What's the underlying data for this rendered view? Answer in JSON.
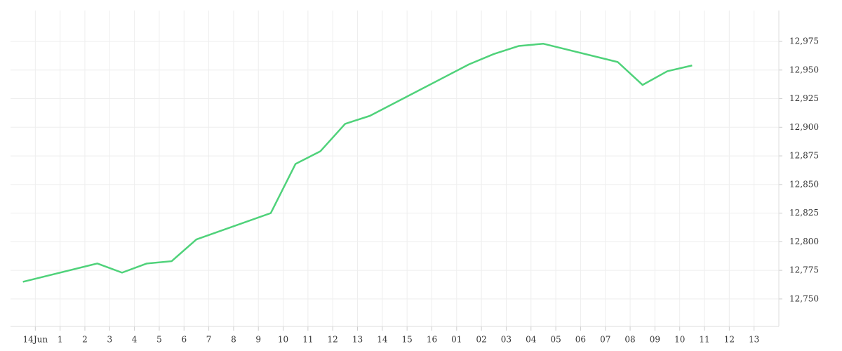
{
  "chart_data": {
    "type": "line",
    "x": [
      -0.5,
      2.5,
      3.5,
      4.5,
      5.5,
      6.5,
      9.5,
      10.5,
      11.5,
      12.5,
      13.5,
      17.5,
      18.5,
      19.5,
      20.5,
      23.5,
      24.5,
      25.5,
      26.5
    ],
    "series": [
      {
        "color": "#4fd27a",
        "values": [
          12765,
          12781,
          12773,
          12781,
          12783,
          12802,
          12825,
          12868,
          12879,
          12903,
          12910,
          12955,
          12964,
          12971,
          12973,
          12957,
          12937,
          12949,
          12954
        ]
      }
    ],
    "xlim": [
      -1,
      30
    ],
    "xticks": [
      {
        "value": 0,
        "label": "14Jun"
      },
      1,
      2,
      3,
      4,
      5,
      6,
      7,
      8,
      9,
      10,
      11,
      12,
      13,
      14,
      15,
      16,
      {
        "value": 17,
        "label": "01"
      },
      {
        "value": 18,
        "label": "02"
      },
      {
        "value": 19,
        "label": "03"
      },
      {
        "value": 20,
        "label": "04"
      },
      {
        "value": 21,
        "label": "05"
      },
      {
        "value": 22,
        "label": "06"
      },
      {
        "value": 23,
        "label": "07"
      },
      {
        "value": 24,
        "label": "08"
      },
      {
        "value": 25,
        "label": "09"
      },
      {
        "value": 26,
        "label": "10"
      },
      {
        "value": 27,
        "label": "11"
      },
      {
        "value": 28,
        "label": "12"
      },
      {
        "value": 29,
        "label": "13"
      }
    ],
    "ylim": [
      12726,
      13002
    ],
    "yticks": [
      {
        "value": 12750,
        "label": "12,750"
      },
      {
        "value": 12775,
        "label": "12,775"
      },
      {
        "value": 12800,
        "label": "12,800"
      },
      {
        "value": 12825,
        "label": "12,825"
      },
      {
        "value": 12850,
        "label": "12,850"
      },
      {
        "value": 12875,
        "label": "12,875"
      },
      {
        "value": 12900,
        "label": "12,900"
      },
      {
        "value": 12925,
        "label": "12,925"
      },
      {
        "value": 12950,
        "label": "12,950"
      },
      {
        "value": 12975,
        "label": "12,975"
      }
    ],
    "grid": true
  }
}
